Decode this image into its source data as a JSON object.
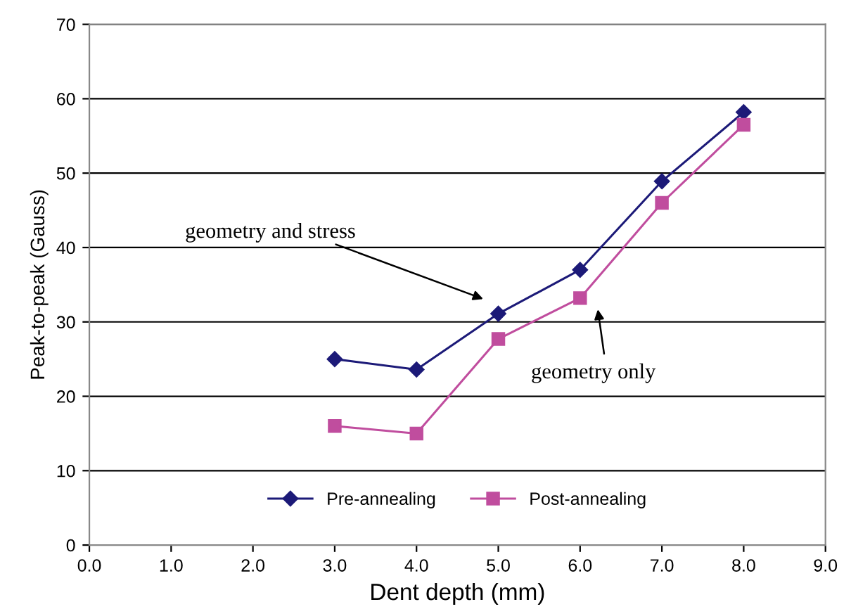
{
  "chart_data": {
    "type": "line",
    "xlabel": "Dent depth (mm)",
    "ylabel": "Peak-to-peak (Gauss)",
    "x": [
      3,
      4,
      5,
      6,
      7,
      8
    ],
    "series": [
      {
        "name": "Pre-annealing",
        "color": "#1c1a78",
        "marker": "diamond",
        "values": [
          25,
          23.6,
          31.1,
          37,
          48.9,
          58.2
        ]
      },
      {
        "name": "Post-annealing",
        "color": "#c04d9e",
        "marker": "square",
        "values": [
          16,
          15,
          27.7,
          33.2,
          46,
          56.5
        ]
      }
    ],
    "xlim": [
      0,
      9
    ],
    "xticks": [
      {
        "value": 0,
        "label": "0.0"
      },
      {
        "value": 1,
        "label": "1.0"
      },
      {
        "value": 2,
        "label": "2.0"
      },
      {
        "value": 3,
        "label": "3.0"
      },
      {
        "value": 4,
        "label": "4.0"
      },
      {
        "value": 5,
        "label": "5.0"
      },
      {
        "value": 6,
        "label": "6.0"
      },
      {
        "value": 7,
        "label": "7.0"
      },
      {
        "value": 8,
        "label": "8.0"
      },
      {
        "value": 9,
        "label": "9.0"
      }
    ],
    "ylim": [
      0,
      70
    ],
    "yticks": [
      0,
      10,
      20,
      30,
      40,
      50,
      60,
      70
    ],
    "grid": "y",
    "legend": "bottom",
    "annotations": [
      "geometry and stress",
      "geometry only"
    ]
  }
}
